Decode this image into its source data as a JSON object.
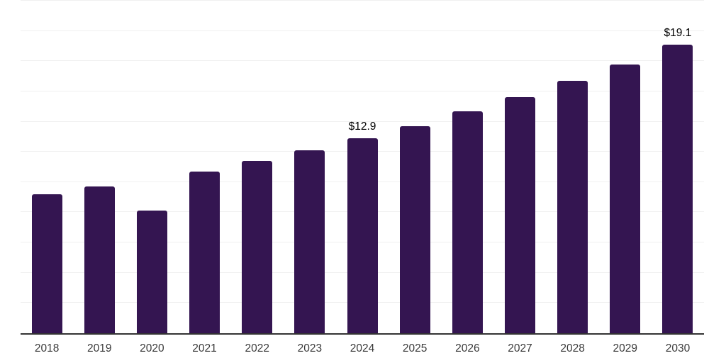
{
  "chart_data": {
    "type": "bar",
    "title": "",
    "xlabel": "",
    "ylabel": "",
    "categories": [
      "2018",
      "2019",
      "2020",
      "2021",
      "2022",
      "2023",
      "2024",
      "2025",
      "2026",
      "2027",
      "2028",
      "2029",
      "2030"
    ],
    "values": [
      9.2,
      9.7,
      8.1,
      10.7,
      11.4,
      12.1,
      12.9,
      13.7,
      14.7,
      15.6,
      16.7,
      17.8,
      19.1
    ],
    "data_labels": [
      {
        "index": 6,
        "text": "$12.9"
      },
      {
        "index": 12,
        "text": "$19.1"
      }
    ],
    "ylim": [
      0,
      22
    ],
    "gridline_step": 2,
    "grid": "horizontal-only",
    "y_tick_labels_shown": false,
    "legend": "none",
    "colors": {
      "bar": "#341551",
      "axis_line": "#333333",
      "gridline": "#f0f0f0",
      "tick_label": "#3a3a3a",
      "data_label": "#000000",
      "background": "#ffffff"
    }
  }
}
